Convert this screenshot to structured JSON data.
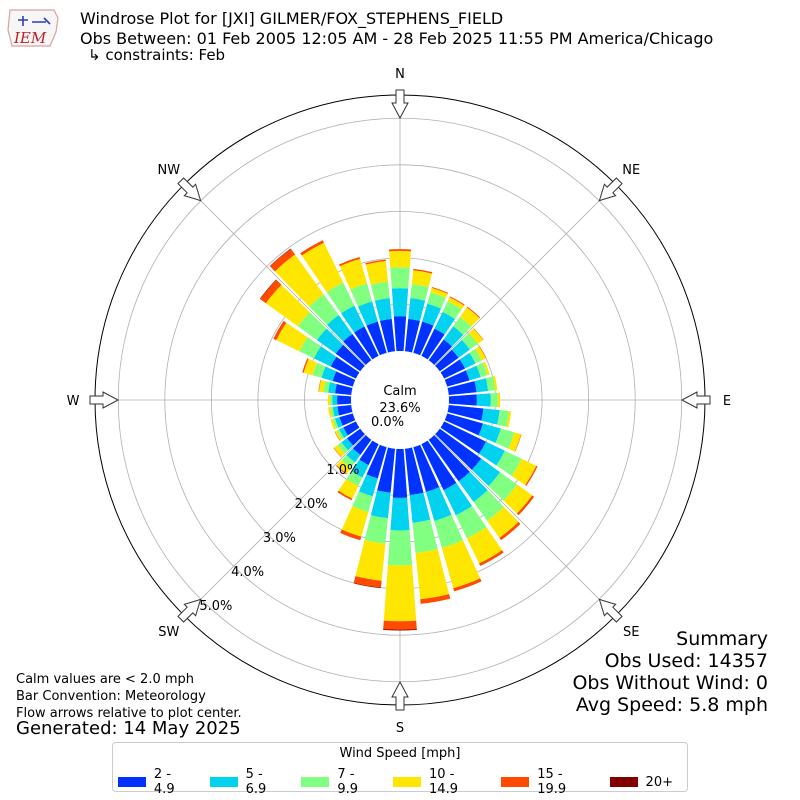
{
  "header": {
    "logo_text": "IEM",
    "title_line1": "Windrose Plot for [JXI] GILMER/FOX_STEPHENS_FIELD",
    "title_line2": "Obs Between: 01 Feb 2005 12:05 AM - 28 Feb 2025 11:55 PM America/Chicago",
    "title_line3": "↳ constraints: Feb"
  },
  "notes": {
    "calm_note": "Calm values are < 2.0 mph",
    "bar_convention": "Bar Convention: Meteorology",
    "flow_note": "Flow arrows relative to plot center.",
    "generated": "Generated: 14 May 2025"
  },
  "summary": {
    "title": "Summary",
    "obs_used": "Obs Used: 14357",
    "obs_without_wind": "Obs Without Wind: 0",
    "avg_speed": "Avg Speed: 5.8 mph"
  },
  "legend": {
    "title": "Wind Speed [mph]",
    "items": [
      {
        "label": "2 - 4.9",
        "color": "#0033ff"
      },
      {
        "label": "5 - 6.9",
        "color": "#00d2f0"
      },
      {
        "label": "7 - 9.9",
        "color": "#80ff80"
      },
      {
        "label": "10 - 14.9",
        "color": "#ffe600"
      },
      {
        "label": "15 - 19.9",
        "color": "#ff4a00"
      },
      {
        "label": "20+",
        "color": "#800000"
      }
    ]
  },
  "chart_data": {
    "type": "windrose",
    "calm_label": "Calm",
    "calm_percent": "23.6%",
    "radial_tick_labels": [
      "0.0%",
      "1.0%",
      "2.0%",
      "3.0%",
      "4.0%",
      "5.0%"
    ],
    "radial_ticks": [
      0,
      1,
      2,
      3,
      4,
      5
    ],
    "radial_max": 5.5,
    "compass_labels": [
      "N",
      "NE",
      "E",
      "SE",
      "S",
      "SW",
      "W",
      "NW"
    ],
    "direction_bins_deg": [
      0,
      10,
      20,
      30,
      40,
      50,
      60,
      70,
      80,
      90,
      100,
      110,
      120,
      130,
      140,
      150,
      160,
      170,
      180,
      190,
      200,
      210,
      220,
      230,
      240,
      250,
      260,
      270,
      280,
      290,
      300,
      310,
      320,
      330,
      340,
      350
    ],
    "speed_bins": [
      "2 - 4.9",
      "5 - 6.9",
      "7 - 9.9",
      "10 - 14.9",
      "15 - 19.9",
      "20+"
    ],
    "series": [
      {
        "name": "2 - 4.9",
        "values": [
          0.75,
          0.7,
          0.7,
          0.65,
          0.55,
          0.5,
          0.5,
          0.5,
          0.6,
          0.6,
          0.75,
          0.8,
          1.0,
          1.1,
          1.1,
          1.1,
          1.0,
          1.0,
          1.05,
          0.95,
          0.7,
          0.5,
          0.4,
          0.35,
          0.3,
          0.3,
          0.3,
          0.3,
          0.35,
          0.45,
          0.6,
          0.65,
          0.7,
          0.7,
          0.7,
          0.7
        ]
      },
      {
        "name": "5 - 6.9",
        "values": [
          0.6,
          0.45,
          0.4,
          0.4,
          0.35,
          0.3,
          0.25,
          0.25,
          0.25,
          0.3,
          0.35,
          0.4,
          0.45,
          0.5,
          0.55,
          0.6,
          0.65,
          0.6,
          0.7,
          0.55,
          0.4,
          0.3,
          0.2,
          0.15,
          0.1,
          0.1,
          0.1,
          0.1,
          0.15,
          0.25,
          0.4,
          0.5,
          0.5,
          0.5,
          0.45,
          0.45
        ]
      },
      {
        "name": "7 - 9.9",
        "values": [
          0.45,
          0.3,
          0.25,
          0.25,
          0.25,
          0.2,
          0.15,
          0.15,
          0.15,
          0.15,
          0.2,
          0.3,
          0.4,
          0.45,
          0.5,
          0.55,
          0.6,
          0.65,
          0.75,
          0.55,
          0.35,
          0.2,
          0.15,
          0.1,
          0.05,
          0.05,
          0.05,
          0.05,
          0.1,
          0.2,
          0.35,
          0.5,
          0.55,
          0.55,
          0.4,
          0.35
        ]
      },
      {
        "name": "10 - 14.9",
        "values": [
          0.35,
          0.3,
          0.1,
          0.1,
          0.25,
          0.15,
          0.1,
          0.05,
          0.05,
          0.05,
          0.05,
          0.15,
          0.35,
          0.4,
          0.45,
          0.6,
          0.9,
          1.0,
          1.2,
          0.8,
          0.55,
          0.3,
          0.15,
          0.1,
          0.05,
          0.05,
          0.05,
          0.05,
          0.1,
          0.2,
          0.55,
          0.85,
          1.05,
          0.95,
          0.55,
          0.45
        ]
      },
      {
        "name": "15 - 19.9",
        "values": [
          0.04,
          0.03,
          0.02,
          0.02,
          0.02,
          0.01,
          0.01,
          0.0,
          0.0,
          0.0,
          0.0,
          0.01,
          0.03,
          0.05,
          0.06,
          0.06,
          0.07,
          0.1,
          0.18,
          0.15,
          0.08,
          0.04,
          0.02,
          0.01,
          0.01,
          0.0,
          0.0,
          0.0,
          0.01,
          0.03,
          0.07,
          0.15,
          0.15,
          0.06,
          0.04,
          0.03
        ]
      },
      {
        "name": "20+",
        "values": [
          0.0,
          0.0,
          0.0,
          0.0,
          0.0,
          0.0,
          0.0,
          0.0,
          0.0,
          0.0,
          0.0,
          0.0,
          0.0,
          0.0,
          0.0,
          0.0,
          0.0,
          0.0,
          0.02,
          0.01,
          0.0,
          0.0,
          0.0,
          0.0,
          0.0,
          0.0,
          0.0,
          0.0,
          0.0,
          0.0,
          0.0,
          0.01,
          0.01,
          0.0,
          0.0,
          0.0
        ]
      }
    ]
  }
}
